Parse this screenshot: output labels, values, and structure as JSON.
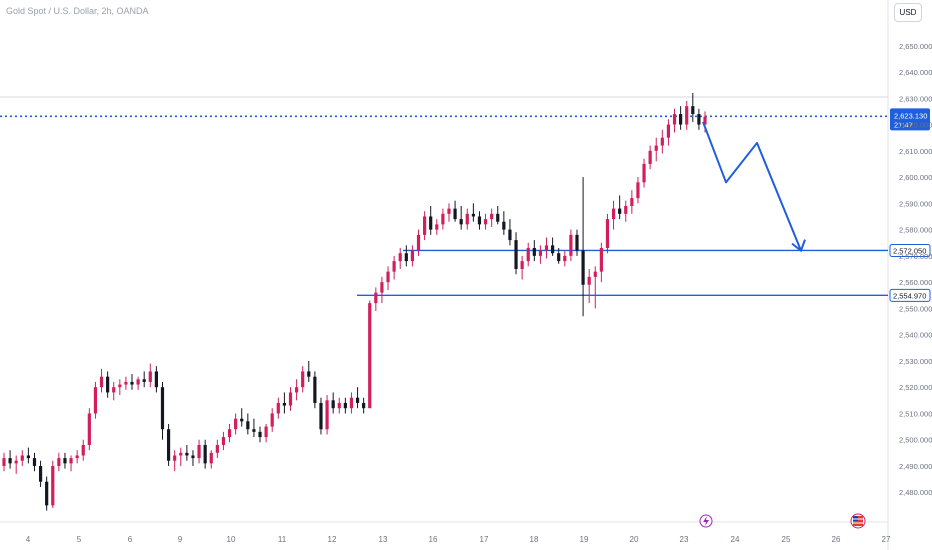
{
  "header": {
    "title": "Gold Spot / U.S. Dollar, 2h, OANDA",
    "currency": "USD"
  },
  "colors": {
    "up": "#d21f5c",
    "down": "#131722",
    "drawing": "#1f5fdc",
    "price_line": "#1f5fdc",
    "axis_text": "#6b7280"
  },
  "icons": {
    "flash": "flash-icon",
    "flag": "us-flag-icon"
  },
  "chart_data": {
    "type": "candlestick",
    "title": "Gold Spot / U.S. Dollar, 2h, OANDA",
    "xlabel": "",
    "ylabel": "",
    "ylim": [
      2474,
      2658
    ],
    "y_ticks": [
      2480,
      2490,
      2500,
      2510,
      2520,
      2530,
      2540,
      2550,
      2560,
      2570,
      2580,
      2590,
      2600,
      2610,
      2620,
      2630,
      2640,
      2650
    ],
    "y_tick_labels": [
      "2,480.000",
      "2,490.000",
      "2,500.000",
      "2,510.000",
      "2,520.000",
      "2,530.000",
      "2,540.000",
      "2,550.000",
      "2,560.000",
      "2,570.000",
      "2,580.000",
      "2,590.000",
      "2,600.000",
      "2,610.000",
      "2,620.000",
      "2,630.000",
      "2,640.000",
      "2,650.000"
    ],
    "x_tick_labels": [
      "4",
      "5",
      "6",
      "9",
      "10",
      "11",
      "12",
      "13",
      "16",
      "17",
      "18",
      "19",
      "20",
      "23",
      "24",
      "25",
      "26",
      "27"
    ],
    "last_price": {
      "value": 2623.13,
      "label": "2,623.130",
      "countdown": "21:47"
    },
    "levels": [
      {
        "value": 2572.05,
        "label": "2,572.050"
      },
      {
        "value": 2554.97,
        "label": "2,554.970"
      }
    ],
    "projection_path": [
      2621,
      2598,
      2613,
      2572
    ],
    "candles": [
      [
        2490,
        2495,
        2488,
        2493
      ],
      [
        2493,
        2496,
        2489,
        2491
      ],
      [
        2491,
        2494,
        2487,
        2492
      ],
      [
        2492,
        2496,
        2490,
        2494
      ],
      [
        2494,
        2497,
        2491,
        2493
      ],
      [
        2493,
        2495,
        2488,
        2490
      ],
      [
        2490,
        2492,
        2482,
        2484
      ],
      [
        2484,
        2486,
        2473,
        2475
      ],
      [
        2475,
        2492,
        2474,
        2490
      ],
      [
        2490,
        2495,
        2488,
        2493
      ],
      [
        2493,
        2495,
        2489,
        2491
      ],
      [
        2491,
        2494,
        2488,
        2493
      ],
      [
        2493,
        2496,
        2491,
        2494
      ],
      [
        2494,
        2500,
        2492,
        2498
      ],
      [
        2498,
        2512,
        2496,
        2510
      ],
      [
        2510,
        2522,
        2508,
        2520
      ],
      [
        2520,
        2527,
        2518,
        2524
      ],
      [
        2524,
        2526,
        2516,
        2518
      ],
      [
        2518,
        2522,
        2515,
        2520
      ],
      [
        2520,
        2523,
        2517,
        2521
      ],
      [
        2521,
        2524,
        2519,
        2522
      ],
      [
        2522,
        2525,
        2519,
        2521
      ],
      [
        2521,
        2524,
        2519,
        2523
      ],
      [
        2523,
        2526,
        2520,
        2522
      ],
      [
        2522,
        2529,
        2520,
        2526
      ],
      [
        2526,
        2528,
        2518,
        2520
      ],
      [
        2520,
        2522,
        2500,
        2504
      ],
      [
        2504,
        2506,
        2490,
        2492
      ],
      [
        2492,
        2496,
        2488,
        2494
      ],
      [
        2494,
        2497,
        2490,
        2495
      ],
      [
        2495,
        2498,
        2492,
        2494
      ],
      [
        2494,
        2496,
        2490,
        2493
      ],
      [
        2493,
        2500,
        2491,
        2498
      ],
      [
        2498,
        2500,
        2489,
        2491
      ],
      [
        2491,
        2496,
        2489,
        2495
      ],
      [
        2495,
        2500,
        2493,
        2498
      ],
      [
        2498,
        2503,
        2496,
        2501
      ],
      [
        2501,
        2506,
        2499,
        2504
      ],
      [
        2504,
        2510,
        2502,
        2508
      ],
      [
        2508,
        2512,
        2505,
        2507
      ],
      [
        2507,
        2510,
        2502,
        2504
      ],
      [
        2504,
        2508,
        2501,
        2503
      ],
      [
        2503,
        2505,
        2499,
        2501
      ],
      [
        2501,
        2506,
        2499,
        2505
      ],
      [
        2505,
        2512,
        2503,
        2510
      ],
      [
        2510,
        2516,
        2508,
        2514
      ],
      [
        2514,
        2518,
        2510,
        2513
      ],
      [
        2513,
        2520,
        2511,
        2518
      ],
      [
        2518,
        2523,
        2515,
        2520
      ],
      [
        2520,
        2528,
        2518,
        2526
      ],
      [
        2526,
        2530,
        2522,
        2524
      ],
      [
        2524,
        2526,
        2512,
        2514
      ],
      [
        2514,
        2516,
        2502,
        2504
      ],
      [
        2504,
        2517,
        2502,
        2515
      ],
      [
        2515,
        2518,
        2510,
        2512
      ],
      [
        2512,
        2516,
        2510,
        2514
      ],
      [
        2514,
        2516,
        2510,
        2512
      ],
      [
        2512,
        2518,
        2510,
        2516
      ],
      [
        2516,
        2520,
        2512,
        2514
      ],
      [
        2514,
        2516,
        2510,
        2512
      ],
      [
        2512,
        2553,
        2512,
        2552
      ],
      [
        2552,
        2558,
        2549,
        2556
      ],
      [
        2556,
        2562,
        2552,
        2560
      ],
      [
        2560,
        2566,
        2557,
        2564
      ],
      [
        2564,
        2570,
        2561,
        2568
      ],
      [
        2568,
        2573,
        2565,
        2571
      ],
      [
        2571,
        2574,
        2566,
        2568
      ],
      [
        2568,
        2574,
        2566,
        2572
      ],
      [
        2572,
        2580,
        2570,
        2578
      ],
      [
        2578,
        2587,
        2576,
        2585
      ],
      [
        2585,
        2589,
        2578,
        2580
      ],
      [
        2580,
        2584,
        2578,
        2582
      ],
      [
        2582,
        2588,
        2580,
        2586
      ],
      [
        2586,
        2590,
        2583,
        2588
      ],
      [
        2588,
        2591,
        2583,
        2584
      ],
      [
        2584,
        2589,
        2580,
        2582
      ],
      [
        2582,
        2588,
        2580,
        2586
      ],
      [
        2586,
        2590,
        2583,
        2585
      ],
      [
        2585,
        2587,
        2580,
        2582
      ],
      [
        2582,
        2586,
        2580,
        2584
      ],
      [
        2584,
        2588,
        2581,
        2586
      ],
      [
        2586,
        2589,
        2582,
        2583
      ],
      [
        2583,
        2587,
        2578,
        2580
      ],
      [
        2580,
        2584,
        2574,
        2576
      ],
      [
        2576,
        2579,
        2563,
        2565
      ],
      [
        2565,
        2570,
        2561,
        2568
      ],
      [
        2568,
        2575,
        2566,
        2573
      ],
      [
        2573,
        2576,
        2568,
        2570
      ],
      [
        2570,
        2574,
        2567,
        2572
      ],
      [
        2572,
        2577,
        2569,
        2574
      ],
      [
        2574,
        2577,
        2570,
        2571
      ],
      [
        2571,
        2573,
        2567,
        2568
      ],
      [
        2568,
        2572,
        2566,
        2570
      ],
      [
        2570,
        2580,
        2568,
        2578
      ],
      [
        2578,
        2580,
        2570,
        2572
      ],
      [
        2572,
        2600,
        2547,
        2559
      ],
      [
        2559,
        2565,
        2552,
        2562
      ],
      [
        2562,
        2566,
        2550,
        2564
      ],
      [
        2564,
        2575,
        2560,
        2573
      ],
      [
        2573,
        2586,
        2571,
        2584
      ],
      [
        2584,
        2591,
        2580,
        2588
      ],
      [
        2588,
        2593,
        2584,
        2586
      ],
      [
        2586,
        2591,
        2583,
        2589
      ],
      [
        2589,
        2595,
        2586,
        2592
      ],
      [
        2592,
        2600,
        2590,
        2598
      ],
      [
        2598,
        2607,
        2596,
        2605
      ],
      [
        2605,
        2612,
        2603,
        2610
      ],
      [
        2610,
        2615,
        2606,
        2612
      ],
      [
        2612,
        2618,
        2609,
        2615
      ],
      [
        2615,
        2622,
        2612,
        2620
      ],
      [
        2620,
        2626,
        2617,
        2624
      ],
      [
        2624,
        2627,
        2618,
        2620
      ],
      [
        2620,
        2629,
        2618,
        2627
      ],
      [
        2627,
        2632,
        2621,
        2624
      ],
      [
        2624,
        2626,
        2618,
        2620
      ],
      [
        2620,
        2625,
        2617,
        2623
      ]
    ]
  }
}
